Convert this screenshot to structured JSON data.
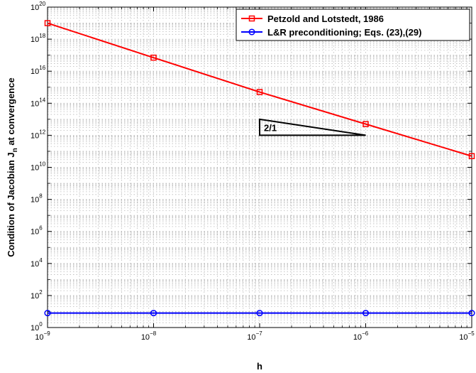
{
  "chart_data": {
    "type": "line",
    "x_scale": "log",
    "y_scale": "log",
    "grid": true,
    "legend_position": "top-right",
    "xlabel": "h",
    "ylabel_parts": [
      "Condition of Jacobian J",
      "n",
      " at convergence"
    ],
    "xlim": [
      1e-09,
      1e-05
    ],
    "ylim": [
      1,
      1e+20
    ],
    "x_ticks": [
      {
        "base": "10",
        "exp": "−9",
        "value": 1e-09
      },
      {
        "base": "10",
        "exp": "−8",
        "value": 1e-08
      },
      {
        "base": "10",
        "exp": "−7",
        "value": 1e-07
      },
      {
        "base": "10",
        "exp": "−6",
        "value": 1e-06
      },
      {
        "base": "10",
        "exp": "−5",
        "value": 1e-05
      }
    ],
    "y_ticks": [
      {
        "base": "10",
        "exp": "0",
        "value": 1
      },
      {
        "base": "10",
        "exp": "2",
        "value": 100.0
      },
      {
        "base": "10",
        "exp": "4",
        "value": 10000.0
      },
      {
        "base": "10",
        "exp": "6",
        "value": 1000000.0
      },
      {
        "base": "10",
        "exp": "8",
        "value": 100000000.0
      },
      {
        "base": "10",
        "exp": "10",
        "value": 10000000000.0
      },
      {
        "base": "10",
        "exp": "12",
        "value": 1000000000000.0
      },
      {
        "base": "10",
        "exp": "14",
        "value": 100000000000000.0
      },
      {
        "base": "10",
        "exp": "16",
        "value": 1e+16
      },
      {
        "base": "10",
        "exp": "18",
        "value": 1e+18
      },
      {
        "base": "10",
        "exp": "20",
        "value": 1e+20
      }
    ],
    "x": [
      1e-09,
      1e-08,
      1e-07,
      1e-06,
      1e-05
    ],
    "series": [
      {
        "name": "Petzold and Lotstedt, 1986",
        "color": "#ff0000",
        "marker": "square",
        "values": [
          1e+19,
          7e+16,
          500000000000000.0,
          5000000000000.0,
          50000000000.0
        ]
      },
      {
        "name": "L&R preconditioning; Eqs. (23),(29)",
        "color": "#0000ff",
        "marker": "circle",
        "values": [
          8,
          8,
          8,
          8,
          8
        ]
      }
    ],
    "annotation": {
      "label": "2/1",
      "triangle": [
        [
          1e-07,
          10000000000000.0
        ],
        [
          1e-07,
          1000000000000.0
        ],
        [
          1e-06,
          1000000000000.0
        ]
      ]
    }
  }
}
